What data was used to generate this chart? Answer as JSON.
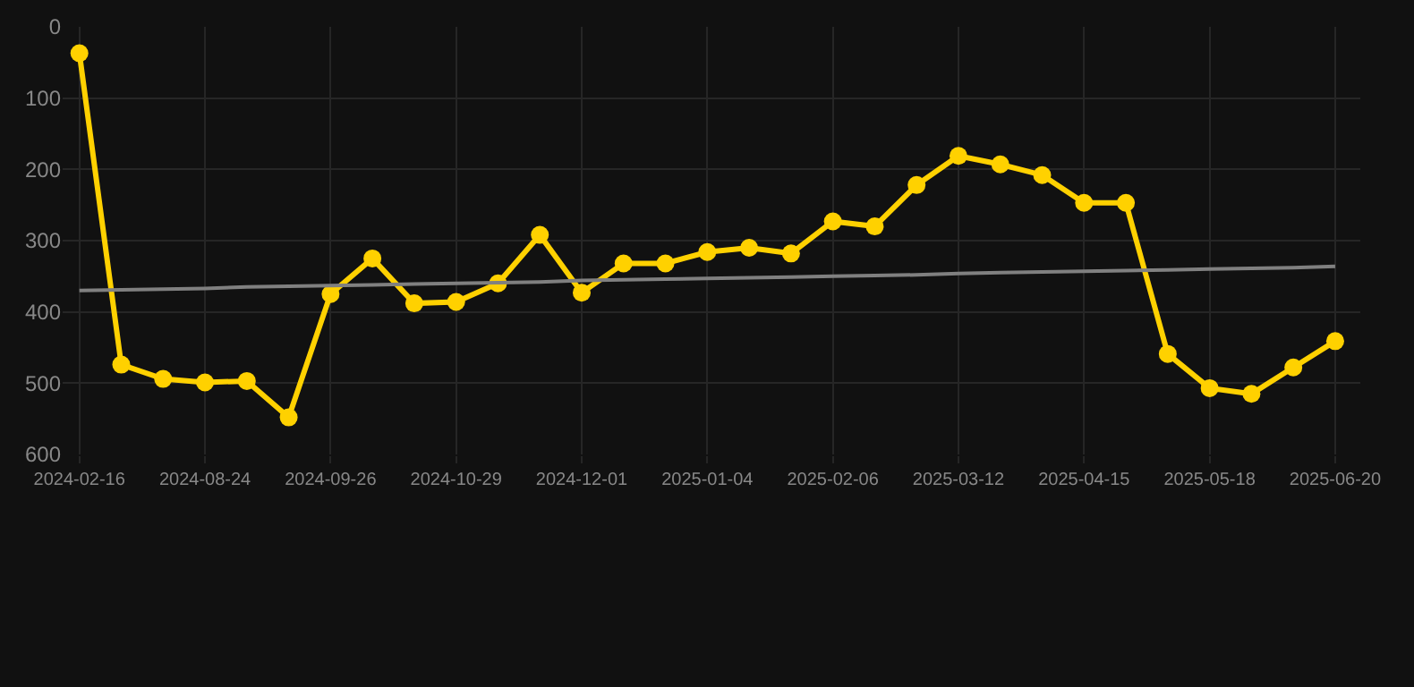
{
  "chart_data": {
    "type": "line",
    "categories": [
      "2024-02-16",
      null,
      null,
      "2024-08-24",
      null,
      null,
      "2024-09-26",
      null,
      null,
      "2024-10-29",
      null,
      null,
      "2024-12-01",
      null,
      null,
      "2025-01-04",
      null,
      null,
      "2025-02-06",
      null,
      null,
      "2025-03-12",
      null,
      null,
      "2025-04-15",
      null,
      null,
      "2025-05-18",
      null,
      null,
      "2025-06-20"
    ],
    "series": [
      {
        "color": "#ffd100",
        "marker": "circle",
        "values": [
          37,
          474,
          494,
          499,
          497,
          548,
          375,
          325,
          388,
          386,
          360,
          292,
          373,
          332,
          332,
          316,
          310,
          318,
          273,
          280,
          222,
          181,
          193,
          208,
          247,
          247,
          459,
          507,
          515,
          478,
          441
        ]
      },
      {
        "color": "#808080",
        "marker": "none",
        "values": [
          370,
          369,
          368,
          367,
          365,
          364,
          363,
          362,
          361,
          360,
          359,
          358,
          356,
          355,
          354,
          353,
          352,
          351,
          350,
          349,
          348,
          346,
          345,
          344,
          343,
          342,
          341,
          340,
          339,
          338,
          336
        ]
      }
    ],
    "ylim": [
      600,
      0
    ],
    "yticks": [
      0,
      100,
      200,
      300,
      400,
      500,
      600
    ],
    "grid": true
  }
}
